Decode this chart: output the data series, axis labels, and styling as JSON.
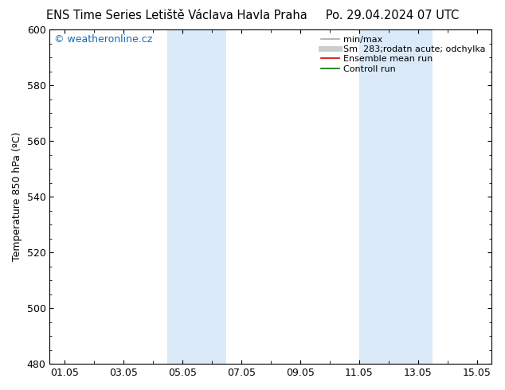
{
  "title_left": "ENS Time Series Letiště Václava Havla Praha",
  "title_right": "Po. 29.04.2024 07 UTC",
  "ylabel": "Temperature 850 hPa (ºC)",
  "ylim": [
    480,
    600
  ],
  "yticks": [
    480,
    500,
    520,
    540,
    560,
    580,
    600
  ],
  "xlim": [
    -0.5,
    14.5
  ],
  "xtick_labels": [
    "01.05",
    "03.05",
    "05.05",
    "07.05",
    "09.05",
    "11.05",
    "13.05",
    "15.05"
  ],
  "xtick_positions": [
    0,
    2,
    4,
    6,
    8,
    10,
    12,
    14
  ],
  "blue_bands": [
    {
      "xstart": 3.5,
      "xend": 5.5
    },
    {
      "xstart": 10.0,
      "xend": 12.5
    }
  ],
  "band_color": "#daeaf8",
  "watermark_text": "© weatheronline.cz",
  "watermark_color": "#1a6ab5",
  "legend_entries": [
    {
      "label": "min/max",
      "color": "#aaaaaa",
      "lw": 1.2
    },
    {
      "label": "Sm  283;rodatn acute; odchylka",
      "color": "#cccccc",
      "lw": 5
    },
    {
      "label": "Ensemble mean run",
      "color": "#dd0000",
      "lw": 1.2
    },
    {
      "label": "Controll run",
      "color": "#007700",
      "lw": 1.2
    }
  ],
  "bg_color": "#ffffff",
  "title_fontsize": 10.5,
  "ylabel_fontsize": 9,
  "tick_fontsize": 9,
  "watermark_fontsize": 9,
  "legend_fontsize": 8
}
